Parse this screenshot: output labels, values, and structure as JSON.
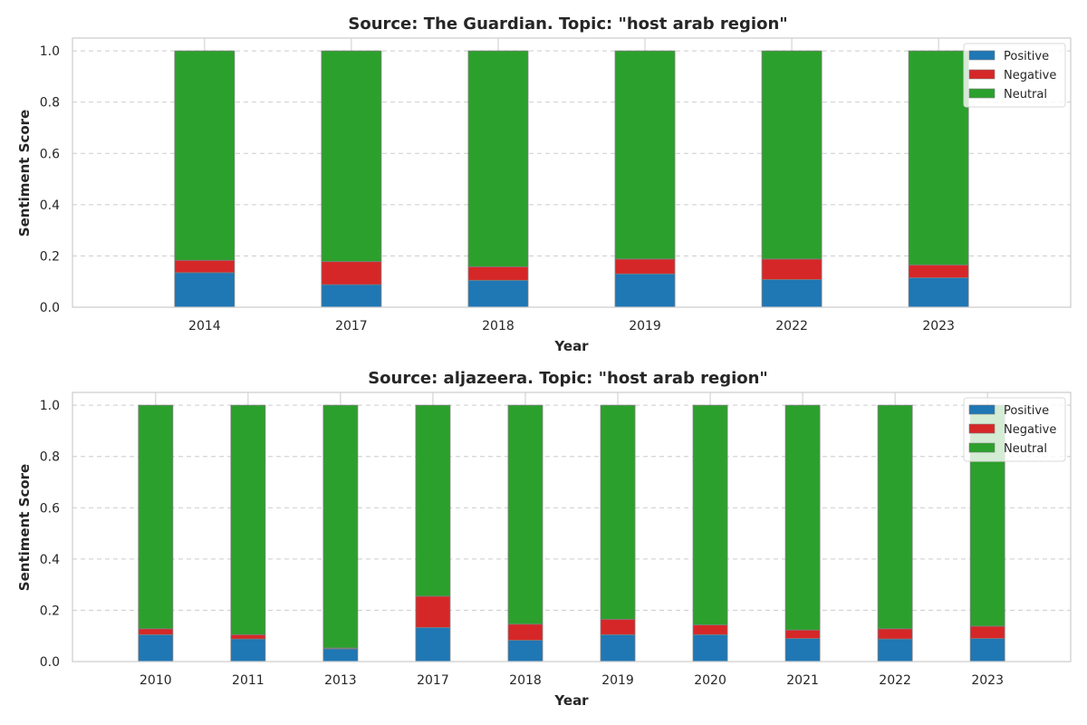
{
  "chart_data": [
    {
      "type": "bar",
      "stacked": true,
      "title": "Source: The Guardian. Topic: \"host arab region\"",
      "xlabel": "Year",
      "ylabel": "Sentiment Score",
      "ylim": [
        0,
        1.05
      ],
      "yticks": [
        "0.0",
        "0.2",
        "0.4",
        "0.6",
        "0.8",
        "1.0"
      ],
      "grid": true,
      "legend_position": "top-right",
      "categories": [
        "2014",
        "2017",
        "2018",
        "2019",
        "2022",
        "2023"
      ],
      "series": [
        {
          "name": "Positive",
          "color": "#1f77b4",
          "values": [
            0.135,
            0.088,
            0.105,
            0.13,
            0.108,
            0.115
          ]
        },
        {
          "name": "Negative",
          "color": "#d62728",
          "values": [
            0.048,
            0.09,
            0.053,
            0.058,
            0.08,
            0.05
          ]
        },
        {
          "name": "Neutral",
          "color": "#2ca02c",
          "values": [
            0.817,
            0.822,
            0.842,
            0.812,
            0.812,
            0.835
          ]
        }
      ]
    },
    {
      "type": "bar",
      "stacked": true,
      "title": "Source: aljazeera. Topic: \"host arab region\"",
      "xlabel": "Year",
      "ylabel": "Sentiment Score",
      "ylim": [
        0,
        1.05
      ],
      "yticks": [
        "0.0",
        "0.2",
        "0.4",
        "0.6",
        "0.8",
        "1.0"
      ],
      "grid": true,
      "legend_position": "top-right",
      "categories": [
        "2010",
        "2011",
        "2013",
        "2017",
        "2018",
        "2019",
        "2020",
        "2021",
        "2022",
        "2023"
      ],
      "series": [
        {
          "name": "Positive",
          "color": "#1f77b4",
          "values": [
            0.105,
            0.088,
            0.05,
            0.133,
            0.083,
            0.105,
            0.105,
            0.09,
            0.088,
            0.09
          ]
        },
        {
          "name": "Negative",
          "color": "#d62728",
          "values": [
            0.023,
            0.017,
            0.003,
            0.122,
            0.063,
            0.06,
            0.038,
            0.033,
            0.04,
            0.048
          ]
        },
        {
          "name": "Neutral",
          "color": "#2ca02c",
          "values": [
            0.872,
            0.895,
            0.947,
            0.745,
            0.854,
            0.835,
            0.857,
            0.877,
            0.872,
            0.862
          ]
        }
      ]
    }
  ]
}
